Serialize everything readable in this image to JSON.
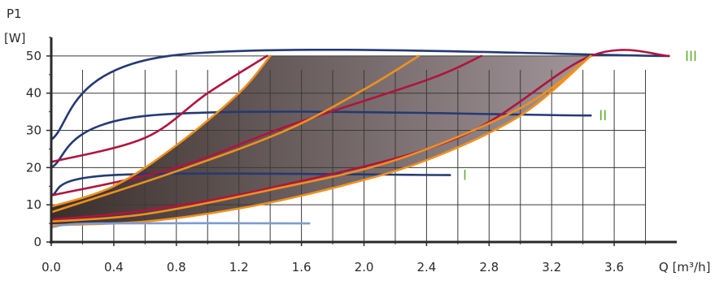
{
  "chart_data": {
    "type": "line",
    "title": "",
    "ylabel": "P1",
    "yunit": "[W]",
    "xlabel": "Q [m³/h]",
    "xlim": [
      0,
      4.0
    ],
    "ylim": [
      0,
      55
    ],
    "x_ticks": [
      "0.0",
      "0.4",
      "0.8",
      "1.2",
      "1.6",
      "2.0",
      "2.4",
      "2.8",
      "3.2",
      "3.6"
    ],
    "x_tick_values": [
      0,
      0.4,
      0.8,
      1.2,
      1.6,
      2.0,
      2.4,
      2.8,
      3.2,
      3.6
    ],
    "y_ticks": [
      "0",
      "10",
      "20",
      "30",
      "40",
      "50"
    ],
    "y_tick_values": [
      0,
      10,
      20,
      30,
      40,
      50
    ],
    "grid": true,
    "colors": {
      "navy": "#243a74",
      "red": "#b0143c",
      "orange": "#f0901e",
      "blue": "#7e9ad2",
      "label_green": "#66b034",
      "axis": "#2a2a2a",
      "grid": "#3a3a3a",
      "fill_dark": "#3b2f2c",
      "fill_light": "#a2959a"
    },
    "speed_labels": [
      {
        "text": "III",
        "x": 4.0,
        "y": 50
      },
      {
        "text": "II",
        "x": 3.45,
        "y": 34
      },
      {
        "text": "I",
        "x": 2.58,
        "y": 18
      }
    ],
    "operating_area": {
      "upper": [
        [
          0,
          9.5
        ],
        [
          0.4,
          15
        ],
        [
          0.8,
          26
        ],
        [
          1.2,
          40
        ],
        [
          1.4,
          50
        ]
      ],
      "top": [
        [
          1.4,
          50
        ],
        [
          3.45,
          50
        ]
      ],
      "lower": [
        [
          0,
          4.5
        ],
        [
          0.6,
          5.5
        ],
        [
          1.2,
          9
        ],
        [
          1.8,
          14.5
        ],
        [
          2.4,
          22
        ],
        [
          3.0,
          34
        ],
        [
          3.45,
          50
        ]
      ]
    },
    "series": [
      {
        "color": "navy",
        "values": [
          [
            0,
            27.5
          ],
          [
            0.75,
            50
          ],
          [
            3.95,
            50
          ]
        ]
      },
      {
        "color": "navy",
        "values": [
          [
            0,
            20
          ],
          [
            0.63,
            34
          ],
          [
            3.45,
            34
          ]
        ]
      },
      {
        "color": "navy",
        "values": [
          [
            0,
            12.5
          ],
          [
            0.4,
            18
          ],
          [
            2.55,
            18
          ]
        ]
      },
      {
        "color": "red",
        "values": [
          [
            0,
            21.5
          ],
          [
            0.6,
            28
          ],
          [
            1.0,
            40
          ],
          [
            1.38,
            50
          ]
        ]
      },
      {
        "color": "red",
        "values": [
          [
            0,
            12.5
          ],
          [
            0.8,
            20
          ],
          [
            1.5,
            31
          ],
          [
            2.4,
            43.5
          ],
          [
            2.75,
            50
          ]
        ]
      },
      {
        "color": "red",
        "values": [
          [
            0,
            6
          ],
          [
            0.6,
            8.5
          ],
          [
            1.4,
            14.5
          ],
          [
            2.6,
            28
          ],
          [
            3.45,
            50
          ],
          [
            3.95,
            50
          ]
        ]
      },
      {
        "color": "orange",
        "values": [
          [
            0,
            9.5
          ],
          [
            0.4,
            15
          ],
          [
            0.8,
            26
          ],
          [
            1.2,
            40
          ],
          [
            1.4,
            50
          ]
        ]
      },
      {
        "color": "orange",
        "values": [
          [
            0,
            8
          ],
          [
            0.8,
            19
          ],
          [
            1.5,
            30
          ],
          [
            2.0,
            41
          ],
          [
            2.35,
            50
          ]
        ]
      },
      {
        "color": "orange",
        "values": [
          [
            0,
            5.5
          ],
          [
            0.6,
            7.5
          ],
          [
            1.4,
            14
          ],
          [
            2.2,
            22
          ],
          [
            3.0,
            36
          ],
          [
            3.45,
            50
          ]
        ]
      },
      {
        "color": "orange",
        "values": [
          [
            0,
            4.5
          ],
          [
            0.6,
            5.5
          ],
          [
            1.2,
            9
          ],
          [
            1.8,
            14.5
          ],
          [
            2.4,
            22
          ],
          [
            3.0,
            34
          ],
          [
            3.45,
            50
          ]
        ]
      },
      {
        "color": "blue",
        "values": [
          [
            0,
            4
          ],
          [
            0.3,
            5
          ],
          [
            1.65,
            5
          ]
        ]
      }
    ]
  }
}
